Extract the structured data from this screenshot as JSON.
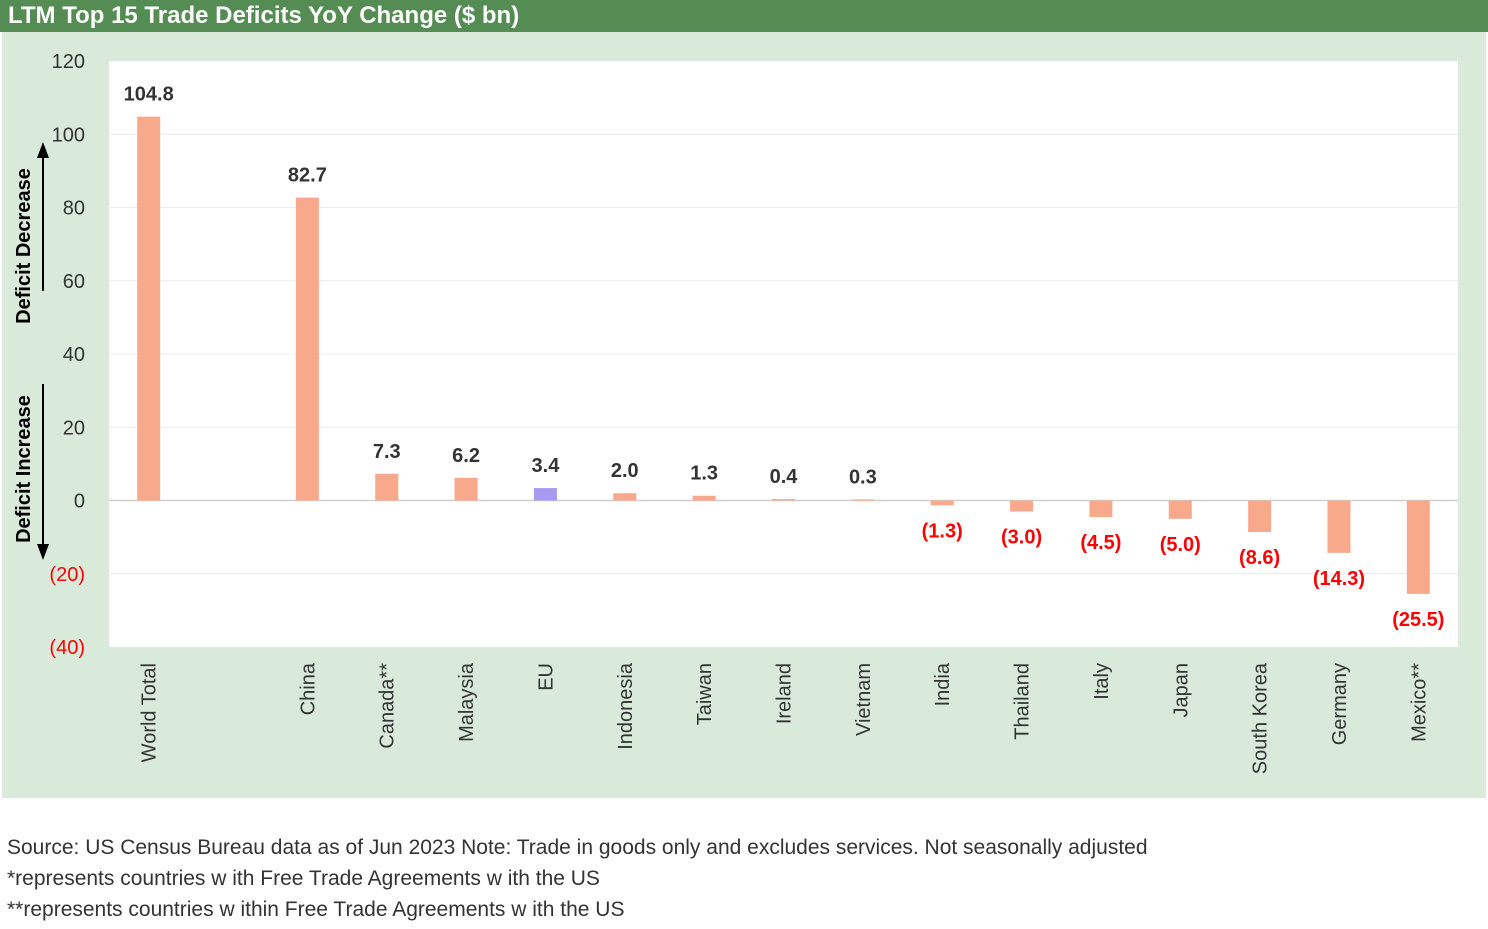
{
  "title": "LTM Top 15 Trade Deficits YoY Change ($ bn)",
  "colors": {
    "header_bg": "#548c54",
    "panel_bg": "#d9eadb",
    "bar": "#f8a98b",
    "bar_highlight": "#a89af0",
    "negative_text": "#ff0000",
    "label_text": "#333333"
  },
  "chart_data": {
    "type": "bar",
    "categories": [
      "World Total",
      "",
      "China",
      "Canada**",
      "Malaysia",
      "EU",
      "Indonesia",
      "Taiwan",
      "Ireland",
      "Vietnam",
      "India",
      "Thailand",
      "Italy",
      "Japan",
      "South Korea",
      "Germany",
      "Mexico**"
    ],
    "values": [
      104.8,
      null,
      82.7,
      7.3,
      6.2,
      3.4,
      2.0,
      1.3,
      0.4,
      0.3,
      -1.3,
      -3.0,
      -4.5,
      -5.0,
      -8.6,
      -14.3,
      -25.5
    ],
    "data_labels": [
      "104.8",
      "",
      "82.7",
      "7.3",
      "6.2",
      "3.4",
      "2.0",
      "1.3",
      "0.4",
      "0.3",
      "(1.3)",
      "(3.0)",
      "(4.5)",
      "(5.0)",
      "(8.6)",
      "(14.3)",
      "(25.5)"
    ],
    "highlight": [
      false,
      false,
      false,
      false,
      false,
      true,
      false,
      false,
      false,
      false,
      false,
      false,
      false,
      false,
      false,
      false,
      false
    ],
    "ylim": [
      -40,
      120
    ],
    "yticks": [
      120,
      100,
      80,
      60,
      40,
      20,
      0,
      -20,
      -40
    ],
    "ytick_labels": [
      "120",
      "100",
      "80",
      "60",
      "40",
      "20",
      "0",
      "(20)",
      "(40)"
    ],
    "grid": true,
    "annotations": {
      "up_label": "Deficit Decrease",
      "down_label": "Deficit Increase"
    }
  },
  "footnotes": [
    "Source: US Census Bureau data as of Jun 2023 Note: Trade in goods only and excludes services. Not seasonally adjusted",
    "*represents countries w ith Free Trade Agreements w ith the US",
    "**represents countries w ithin Free Trade Agreements w ith the US"
  ]
}
